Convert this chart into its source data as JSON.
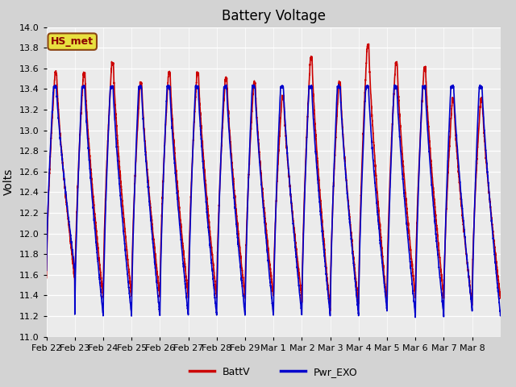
{
  "title": "Battery Voltage",
  "ylabel": "Volts",
  "ylim": [
    11.0,
    14.0
  ],
  "yticks": [
    11.0,
    11.2,
    11.4,
    11.6,
    11.8,
    12.0,
    12.2,
    12.4,
    12.6,
    12.8,
    13.0,
    13.2,
    13.4,
    13.6,
    13.8,
    14.0
  ],
  "xtick_labels": [
    "Feb 22",
    "Feb 23",
    "Feb 24",
    "Feb 25",
    "Feb 26",
    "Feb 27",
    "Feb 28",
    "Feb 29",
    "Mar 1",
    "Mar 2",
    "Mar 3",
    "Mar 4",
    "Mar 5",
    "Mar 6",
    "Mar 7",
    "Mar 8"
  ],
  "line1_color": "#cc0000",
  "line2_color": "#0000cc",
  "line1_label": "BattV",
  "line2_label": "Pwr_EXO",
  "line_width": 1.2,
  "plot_bg": "#ebebeb",
  "fig_bg": "#d3d3d3",
  "annotation_text": "HS_met",
  "annotation_bg": "#e8e040",
  "annotation_border": "#8B4513",
  "annotation_text_color": "#8B0000",
  "title_fontsize": 12,
  "ylabel_fontsize": 10,
  "tick_fontsize": 8,
  "legend_fontsize": 9
}
